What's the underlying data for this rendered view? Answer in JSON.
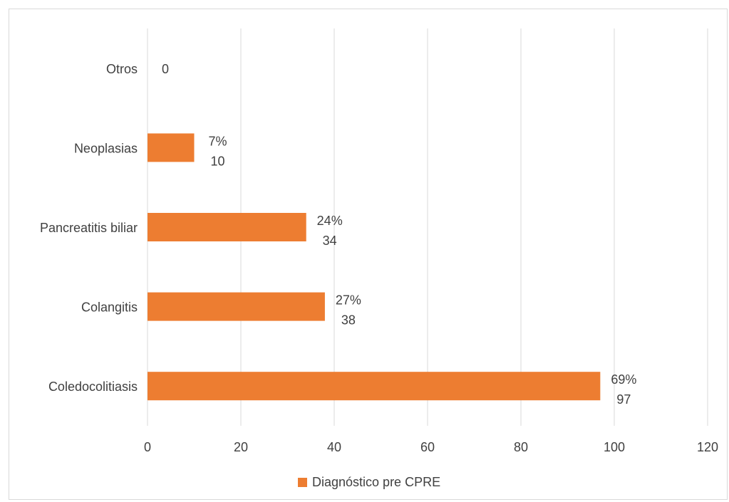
{
  "chart_data": {
    "type": "bar",
    "orientation": "horizontal",
    "categories": [
      "Coledocolitiasis",
      "Colangitis",
      "Pancreatitis biliar",
      "Neoplasias",
      "Otros"
    ],
    "series": [
      {
        "name": "Diagnóstico pre CPRE",
        "values": [
          97,
          38,
          34,
          10,
          0
        ],
        "percent_labels": [
          "69%",
          "27%",
          "24%",
          "7%",
          ""
        ],
        "value_labels": [
          "97",
          "38",
          "34",
          "10",
          "0"
        ],
        "color": "#ED7D31"
      }
    ],
    "xlim": [
      0,
      120
    ],
    "x_ticks": [
      "0",
      "20",
      "40",
      "60",
      "80",
      "100",
      "120"
    ],
    "grid": "vertical",
    "gridline_color": "#D9D9D9",
    "legend": "bottom",
    "text_color": "#404040"
  }
}
